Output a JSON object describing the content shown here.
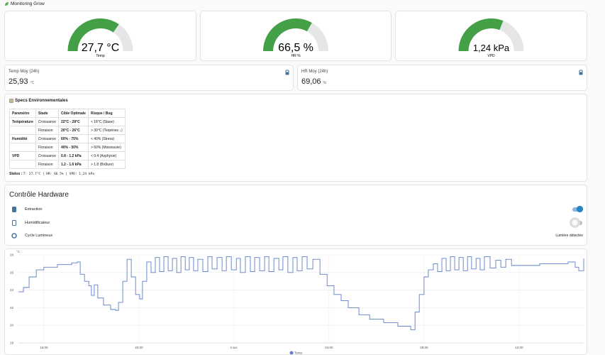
{
  "header": {
    "title": "Monitoring Grow"
  },
  "gauges": [
    {
      "value": 27.7,
      "value_label": "27,7 °C",
      "label": "Temp",
      "min": 0,
      "max": 40
    },
    {
      "value": 66.5,
      "value_label": "66,5 %",
      "label": "HR %",
      "min": 0,
      "max": 100
    },
    {
      "value": 1.24,
      "value_label": "1,24 kPa",
      "label": "VPD",
      "min": 0,
      "max": 2
    }
  ],
  "stats": [
    {
      "title": "Temp Moy (24h)",
      "value": "25,93",
      "unit": "°C"
    },
    {
      "title": "HR Moy (24h)",
      "value": "69,06",
      "unit": "%"
    }
  ],
  "specs": {
    "title": "Specs Environnementales",
    "headers": [
      "Paramètre",
      "Stade",
      "Cible Optimale",
      "Risque / Bug"
    ],
    "rows": [
      [
        "Température",
        "Croissance",
        "22°C - 28°C",
        "< 18°C (Stase)"
      ],
      [
        null,
        "Floraison",
        "20°C - 26°C",
        "> 30°C (Terpènes ↓)"
      ],
      [
        "Humidité",
        "Croissance",
        "60% - 75%",
        "< 40% (Stress)"
      ],
      [
        null,
        "Floraison",
        "40% - 50%",
        "> 60% (Moisissure)"
      ],
      [
        "VPD",
        "Croissance",
        "0.8 - 1.2 kPa",
        "< 0.4 (Asphyxie)"
      ],
      [
        null,
        "Floraison",
        "1.2 - 1.6 kPa",
        "> 1.8 (Brûlure)"
      ]
    ],
    "status_label": "Status :",
    "status": "T: 27.7°C | HR: 66.5% | VPD: 1.24 kPa"
  },
  "hardware": {
    "title": "Contrôle Hardware",
    "items": [
      {
        "name": "Extraction",
        "on": true
      },
      {
        "name": "Humidificateur",
        "on": false
      },
      {
        "name": "Cycle Lumineux",
        "state": "Lumière détectée"
      }
    ]
  },
  "chart_data": {
    "type": "line",
    "y_unit": "°C",
    "x": [
      14.93,
      15.14,
      15.38,
      15.68,
      16.0,
      16.57,
      17.17,
      17.41,
      17.53,
      17.71,
      17.89,
      18.0,
      18.12,
      18.27,
      18.51,
      18.81,
      19.02,
      19.14,
      19.32,
      19.5,
      19.68,
      19.86,
      20.03,
      20.15,
      20.33,
      20.51,
      20.69,
      20.87,
      21.05,
      21.23,
      21.41,
      21.59,
      21.77,
      21.95,
      22.12,
      22.3,
      22.48,
      22.69,
      22.9,
      23.08,
      23.29,
      23.5,
      23.68,
      23.89,
      24.1,
      24.27,
      24.48,
      24.69,
      24.87,
      25.08,
      25.29,
      25.47,
      25.68,
      25.89,
      26.06,
      26.27,
      26.48,
      26.66,
      26.87,
      27.08,
      27.32,
      27.62,
      27.92,
      28.21,
      28.51,
      28.81,
      29.26,
      29.71,
      30.3,
      30.9,
      31.44,
      31.62,
      31.8,
      32.0,
      32.18,
      32.39,
      32.57,
      32.75,
      32.93,
      33.11,
      33.29,
      33.47,
      33.65,
      33.83,
      34.0,
      34.19,
      34.36,
      34.54,
      34.78,
      35.02,
      35.23,
      35.44,
      35.68,
      36.27,
      36.87,
      37.47,
      38.06,
      38.36,
      38.51,
      38.72
    ],
    "series": [
      {
        "name": "Temp",
        "color": "#5b7fc7",
        "values": [
          23.8,
          24.3,
          25.5,
          26.3,
          26.6,
          26.9,
          27.1,
          27.2,
          25.8,
          25.0,
          24.5,
          23.4,
          24.6,
          23.1,
          22.3,
          21.8,
          21.7,
          22.6,
          25.0,
          27.5,
          25.5,
          23.5,
          23.0,
          25.0,
          27.2,
          26.0,
          27.7,
          26.1,
          27.8,
          26.2,
          27.6,
          26.0,
          27.8,
          26.3,
          27.7,
          26.2,
          27.5,
          26.1,
          27.8,
          26.4,
          27.7,
          26.2,
          27.8,
          26.3,
          27.6,
          26.0,
          27.8,
          26.1,
          27.7,
          26.2,
          27.8,
          26.1,
          27.6,
          26.3,
          27.8,
          26.0,
          27.7,
          26.2,
          27.8,
          26.4,
          27.5,
          25.8,
          24.5,
          23.5,
          22.8,
          22.0,
          21.2,
          20.7,
          20.3,
          19.9,
          19.5,
          21.5,
          23.5,
          25.5,
          26.3,
          27.0,
          26.1,
          27.6,
          26.2,
          27.8,
          26.3,
          27.7,
          26.2,
          27.8,
          26.4,
          27.6,
          26.3,
          27.8,
          26.5,
          27.4,
          26.6,
          27.5,
          26.8,
          26.8,
          27.0,
          27.0,
          27.2,
          26.6,
          26.2,
          27.6
        ]
      }
    ],
    "xlim": [
      14.93,
      38.72
    ],
    "xticks": [
      {
        "value": 16,
        "label": "16:00"
      },
      {
        "value": 20,
        "label": "20:00"
      },
      {
        "value": 24,
        "label": "4 avr."
      },
      {
        "value": 28,
        "label": "04:00"
      },
      {
        "value": 32,
        "label": "08:00"
      },
      {
        "value": 36,
        "label": "12:00"
      }
    ],
    "ylim": [
      18,
      28
    ],
    "yticks": [
      18,
      20,
      22,
      24,
      26,
      28
    ],
    "grid": true
  }
}
